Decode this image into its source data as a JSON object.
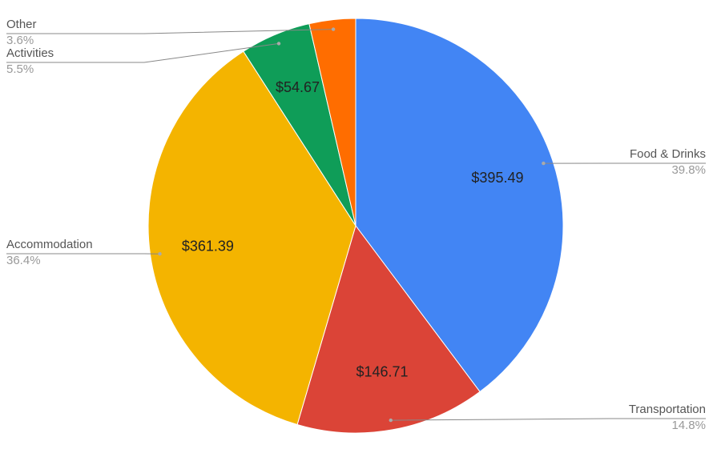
{
  "chart_data": {
    "type": "pie",
    "categories": [
      "Food & Drinks",
      "Transportation",
      "Accommodation",
      "Activities",
      "Other"
    ],
    "values": [
      395.49,
      146.71,
      361.39,
      54.67,
      35.8
    ],
    "value_labels": [
      "$395.49",
      "$146.71",
      "$361.39",
      "$54.67",
      null
    ],
    "percent_labels": [
      "39.8%",
      "14.8%",
      "36.4%",
      "5.5%",
      "3.6%"
    ],
    "colors": [
      "#4285f4",
      "#db4437",
      "#f4b400",
      "#0f9d58",
      "#ff6d00"
    ]
  }
}
